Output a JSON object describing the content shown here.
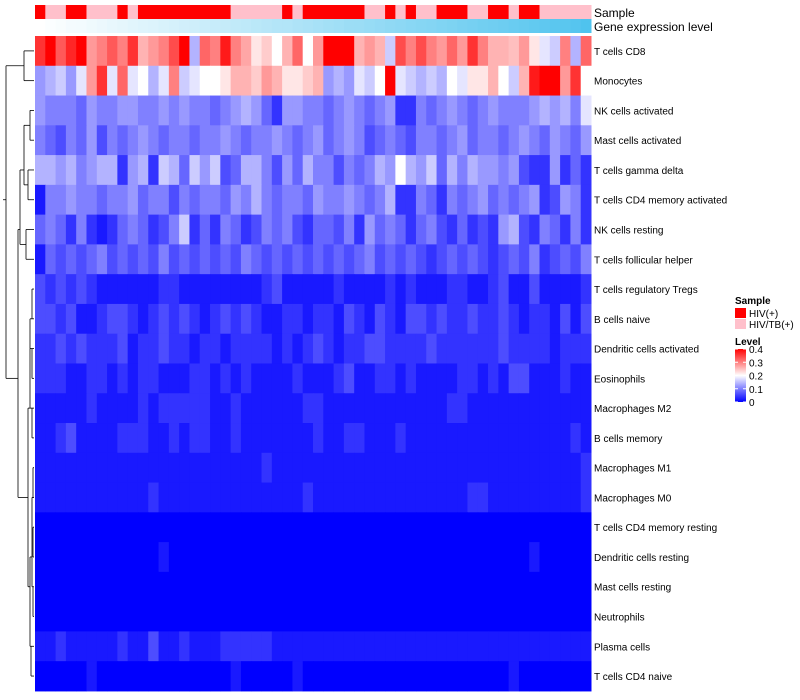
{
  "chart_data": {
    "type": "heatmap",
    "title": "",
    "annotation_tracks": [
      {
        "name": "Sample",
        "label": "Sample"
      },
      {
        "name": "Gene expression level",
        "label": "Gene expression level"
      }
    ],
    "sample_groups": [
      "HIV(+)",
      "HIV/TB(+)",
      "HIV/TB(+)",
      "HIV(+)",
      "HIV(+)",
      "HIV/TB(+)",
      "HIV/TB(+)",
      "HIV/TB(+)",
      "HIV(+)",
      "HIV/TB(+)",
      "HIV(+)",
      "HIV(+)",
      "HIV(+)",
      "HIV(+)",
      "HIV(+)",
      "HIV(+)",
      "HIV(+)",
      "HIV(+)",
      "HIV(+)",
      "HIV/TB(+)",
      "HIV/TB(+)",
      "HIV/TB(+)",
      "HIV/TB(+)",
      "HIV/TB(+)",
      "HIV(+)",
      "HIV/TB(+)",
      "HIV(+)",
      "HIV(+)",
      "HIV(+)",
      "HIV(+)",
      "HIV(+)",
      "HIV(+)",
      "HIV/TB(+)",
      "HIV/TB(+)",
      "HIV(+)",
      "HIV/TB(+)",
      "HIV(+)",
      "HIV/TB(+)",
      "HIV/TB(+)",
      "HIV(+)",
      "HIV(+)",
      "HIV(+)",
      "HIV/TB(+)",
      "HIV/TB(+)",
      "HIV(+)",
      "HIV(+)",
      "HIV/TB(+)",
      "HIV(+)",
      "HIV(+)",
      "HIV/TB(+)",
      "HIV/TB(+)",
      "HIV/TB(+)",
      "HIV/TB(+)",
      "HIV/TB(+)"
    ],
    "gene_expression_level": [
      0.0,
      0.02,
      0.04,
      0.06,
      0.07,
      0.09,
      0.11,
      0.13,
      0.15,
      0.17,
      0.19,
      0.2,
      0.22,
      0.24,
      0.26,
      0.28,
      0.3,
      0.32,
      0.33,
      0.35,
      0.37,
      0.39,
      0.41,
      0.43,
      0.44,
      0.46,
      0.48,
      0.5,
      0.52,
      0.54,
      0.56,
      0.57,
      0.59,
      0.61,
      0.63,
      0.65,
      0.67,
      0.69,
      0.7,
      0.72,
      0.74,
      0.76,
      0.78,
      0.8,
      0.81,
      0.83,
      0.85,
      0.87,
      0.89,
      0.91,
      0.93,
      0.94,
      0.96,
      1.0
    ],
    "rows": [
      "T cells CD8",
      "Monocytes",
      "NK cells activated",
      "Mast cells activated",
      "T cells gamma delta",
      "T cells CD4 memory activated",
      "NK cells resting",
      "T cells follicular helper",
      "T cells regulatory  Tregs",
      "B cells naive",
      "Dendritic cells activated",
      "Eosinophils",
      "Macrophages M2",
      "B cells memory",
      "Macrophages M1",
      "Macrophages M0",
      "T cells CD4 memory resting",
      "Dendritic cells resting",
      "Mast cells resting",
      "Neutrophils",
      "Plasma cells",
      "T cells CD4 naive"
    ],
    "values": [
      [
        0.36,
        0.4,
        0.33,
        0.37,
        0.4,
        0.28,
        0.3,
        0.33,
        0.3,
        0.36,
        0.26,
        0.28,
        0.3,
        0.34,
        0.4,
        0.14,
        0.32,
        0.3,
        0.38,
        0.3,
        0.27,
        0.22,
        0.24,
        0.2,
        0.26,
        0.32,
        0.2,
        0.28,
        0.4,
        0.4,
        0.4,
        0.26,
        0.28,
        0.26,
        0.16,
        0.34,
        0.3,
        0.34,
        0.3,
        0.28,
        0.32,
        0.28,
        0.36,
        0.3,
        0.26,
        0.26,
        0.25,
        0.28,
        0.22,
        0.18,
        0.16,
        0.3,
        0.14,
        0.32
      ],
      [
        0.12,
        0.14,
        0.16,
        0.12,
        0.18,
        0.28,
        0.36,
        0.18,
        0.32,
        0.18,
        0.2,
        0.14,
        0.18,
        0.3,
        0.16,
        0.18,
        0.2,
        0.2,
        0.22,
        0.26,
        0.26,
        0.24,
        0.28,
        0.26,
        0.22,
        0.22,
        0.24,
        0.26,
        0.12,
        0.14,
        0.12,
        0.18,
        0.16,
        0.2,
        0.4,
        0.18,
        0.16,
        0.14,
        0.16,
        0.14,
        0.2,
        0.18,
        0.22,
        0.22,
        0.26,
        0.2,
        0.16,
        0.26,
        0.38,
        0.4,
        0.4,
        0.28,
        0.36,
        0.2
      ],
      [
        0.12,
        0.1,
        0.1,
        0.1,
        0.08,
        0.12,
        0.1,
        0.1,
        0.12,
        0.12,
        0.1,
        0.1,
        0.12,
        0.1,
        0.12,
        0.1,
        0.1,
        0.08,
        0.1,
        0.12,
        0.14,
        0.12,
        0.08,
        0.04,
        0.12,
        0.12,
        0.1,
        0.1,
        0.08,
        0.1,
        0.12,
        0.1,
        0.08,
        0.1,
        0.12,
        0.04,
        0.04,
        0.1,
        0.08,
        0.1,
        0.12,
        0.1,
        0.08,
        0.1,
        0.12,
        0.1,
        0.1,
        0.1,
        0.12,
        0.14,
        0.12,
        0.14,
        0.1,
        0.18
      ],
      [
        0.1,
        0.08,
        0.06,
        0.1,
        0.08,
        0.12,
        0.06,
        0.1,
        0.08,
        0.1,
        0.12,
        0.1,
        0.08,
        0.1,
        0.1,
        0.08,
        0.1,
        0.1,
        0.12,
        0.1,
        0.08,
        0.1,
        0.1,
        0.12,
        0.1,
        0.08,
        0.1,
        0.12,
        0.08,
        0.1,
        0.12,
        0.1,
        0.06,
        0.08,
        0.1,
        0.08,
        0.06,
        0.1,
        0.1,
        0.08,
        0.1,
        0.12,
        0.08,
        0.1,
        0.1,
        0.08,
        0.1,
        0.12,
        0.1,
        0.08,
        0.12,
        0.1,
        0.08,
        0.12
      ],
      [
        0.14,
        0.14,
        0.12,
        0.14,
        0.1,
        0.12,
        0.14,
        0.14,
        0.04,
        0.12,
        0.14,
        0.04,
        0.16,
        0.14,
        0.08,
        0.16,
        0.12,
        0.16,
        0.06,
        0.08,
        0.14,
        0.14,
        0.1,
        0.06,
        0.12,
        0.08,
        0.14,
        0.1,
        0.1,
        0.06,
        0.1,
        0.08,
        0.1,
        0.14,
        0.12,
        0.2,
        0.14,
        0.12,
        0.16,
        0.08,
        0.14,
        0.1,
        0.14,
        0.12,
        0.12,
        0.1,
        0.12,
        0.06,
        0.04,
        0.04,
        0.12,
        0.04,
        0.08,
        0.04
      ],
      [
        0.02,
        0.1,
        0.1,
        0.12,
        0.1,
        0.1,
        0.08,
        0.1,
        0.1,
        0.12,
        0.08,
        0.1,
        0.1,
        0.06,
        0.1,
        0.08,
        0.1,
        0.1,
        0.08,
        0.12,
        0.1,
        0.14,
        0.1,
        0.08,
        0.1,
        0.1,
        0.08,
        0.12,
        0.1,
        0.1,
        0.12,
        0.1,
        0.08,
        0.1,
        0.14,
        0.04,
        0.04,
        0.1,
        0.08,
        0.04,
        0.1,
        0.08,
        0.1,
        0.12,
        0.08,
        0.1,
        0.08,
        0.1,
        0.12,
        0.04,
        0.06,
        0.12,
        0.1,
        0.04
      ],
      [
        0.08,
        0.1,
        0.08,
        0.04,
        0.1,
        0.04,
        0.02,
        0.04,
        0.08,
        0.1,
        0.08,
        0.04,
        0.06,
        0.1,
        0.16,
        0.04,
        0.08,
        0.04,
        0.1,
        0.08,
        0.04,
        0.06,
        0.1,
        0.08,
        0.1,
        0.06,
        0.04,
        0.08,
        0.08,
        0.06,
        0.1,
        0.04,
        0.12,
        0.08,
        0.1,
        0.08,
        0.04,
        0.08,
        0.1,
        0.06,
        0.04,
        0.08,
        0.04,
        0.06,
        0.04,
        0.12,
        0.14,
        0.06,
        0.04,
        0.1,
        0.08,
        0.04,
        0.1,
        0.04
      ],
      [
        0.02,
        0.08,
        0.06,
        0.08,
        0.06,
        0.08,
        0.1,
        0.06,
        0.08,
        0.06,
        0.08,
        0.06,
        0.1,
        0.06,
        0.08,
        0.06,
        0.08,
        0.06,
        0.08,
        0.06,
        0.1,
        0.08,
        0.06,
        0.08,
        0.06,
        0.08,
        0.06,
        0.08,
        0.06,
        0.08,
        0.06,
        0.08,
        0.1,
        0.06,
        0.08,
        0.06,
        0.08,
        0.06,
        0.04,
        0.06,
        0.08,
        0.06,
        0.08,
        0.06,
        0.04,
        0.06,
        0.08,
        0.06,
        0.1,
        0.04,
        0.06,
        0.08,
        0.06,
        0.1
      ],
      [
        0.06,
        0.04,
        0.06,
        0.04,
        0.06,
        0.04,
        0.02,
        0.02,
        0.02,
        0.02,
        0.02,
        0.02,
        0.04,
        0.04,
        0.02,
        0.02,
        0.02,
        0.02,
        0.02,
        0.02,
        0.02,
        0.02,
        0.04,
        0.06,
        0.02,
        0.02,
        0.02,
        0.02,
        0.02,
        0.04,
        0.02,
        0.02,
        0.02,
        0.02,
        0.04,
        0.02,
        0.04,
        0.02,
        0.02,
        0.02,
        0.04,
        0.04,
        0.02,
        0.02,
        0.04,
        0.06,
        0.02,
        0.02,
        0.06,
        0.02,
        0.02,
        0.02,
        0.02,
        0.04
      ],
      [
        0.06,
        0.06,
        0.04,
        0.06,
        0.02,
        0.02,
        0.04,
        0.06,
        0.06,
        0.04,
        0.02,
        0.04,
        0.06,
        0.04,
        0.06,
        0.04,
        0.02,
        0.04,
        0.06,
        0.04,
        0.06,
        0.04,
        0.02,
        0.02,
        0.04,
        0.04,
        0.02,
        0.04,
        0.04,
        0.02,
        0.06,
        0.04,
        0.02,
        0.06,
        0.04,
        0.02,
        0.06,
        0.06,
        0.04,
        0.06,
        0.04,
        0.04,
        0.06,
        0.04,
        0.04,
        0.06,
        0.04,
        0.02,
        0.04,
        0.04,
        0.02,
        0.06,
        0.02,
        0.06
      ],
      [
        0.04,
        0.04,
        0.06,
        0.04,
        0.06,
        0.04,
        0.04,
        0.04,
        0.06,
        0.02,
        0.04,
        0.04,
        0.06,
        0.04,
        0.04,
        0.02,
        0.04,
        0.04,
        0.02,
        0.04,
        0.04,
        0.04,
        0.04,
        0.02,
        0.04,
        0.02,
        0.04,
        0.06,
        0.04,
        0.02,
        0.04,
        0.04,
        0.06,
        0.06,
        0.04,
        0.04,
        0.04,
        0.04,
        0.06,
        0.04,
        0.04,
        0.04,
        0.04,
        0.04,
        0.04,
        0.06,
        0.04,
        0.04,
        0.04,
        0.04,
        0.02,
        0.04,
        0.04,
        0.04
      ],
      [
        0.04,
        0.04,
        0.04,
        0.02,
        0.02,
        0.04,
        0.04,
        0.02,
        0.04,
        0.02,
        0.04,
        0.04,
        0.02,
        0.02,
        0.02,
        0.04,
        0.04,
        0.02,
        0.04,
        0.02,
        0.04,
        0.02,
        0.02,
        0.02,
        0.02,
        0.04,
        0.02,
        0.02,
        0.02,
        0.04,
        0.06,
        0.02,
        0.02,
        0.04,
        0.04,
        0.02,
        0.04,
        0.02,
        0.02,
        0.02,
        0.02,
        0.04,
        0.04,
        0.02,
        0.04,
        0.02,
        0.06,
        0.06,
        0.02,
        0.02,
        0.02,
        0.04,
        0.02,
        0.02
      ],
      [
        0.02,
        0.02,
        0.02,
        0.02,
        0.02,
        0.04,
        0.02,
        0.02,
        0.02,
        0.02,
        0.04,
        0.02,
        0.04,
        0.04,
        0.04,
        0.04,
        0.04,
        0.02,
        0.02,
        0.04,
        0.02,
        0.02,
        0.02,
        0.02,
        0.02,
        0.02,
        0.04,
        0.04,
        0.02,
        0.02,
        0.02,
        0.02,
        0.02,
        0.02,
        0.02,
        0.02,
        0.02,
        0.02,
        0.02,
        0.02,
        0.04,
        0.04,
        0.02,
        0.02,
        0.02,
        0.02,
        0.02,
        0.02,
        0.02,
        0.02,
        0.02,
        0.02,
        0.02,
        0.02
      ],
      [
        0.02,
        0.02,
        0.04,
        0.06,
        0.02,
        0.02,
        0.02,
        0.02,
        0.04,
        0.04,
        0.04,
        0.02,
        0.02,
        0.04,
        0.02,
        0.04,
        0.04,
        0.02,
        0.02,
        0.04,
        0.02,
        0.02,
        0.02,
        0.02,
        0.02,
        0.02,
        0.02,
        0.04,
        0.02,
        0.02,
        0.04,
        0.04,
        0.02,
        0.02,
        0.02,
        0.04,
        0.02,
        0.02,
        0.02,
        0.02,
        0.02,
        0.02,
        0.02,
        0.02,
        0.02,
        0.02,
        0.02,
        0.02,
        0.02,
        0.02,
        0.02,
        0.02,
        0.04,
        0.02
      ],
      [
        0.02,
        0.02,
        0.02,
        0.02,
        0.02,
        0.02,
        0.02,
        0.02,
        0.02,
        0.02,
        0.02,
        0.02,
        0.02,
        0.02,
        0.02,
        0.02,
        0.02,
        0.02,
        0.02,
        0.02,
        0.02,
        0.02,
        0.04,
        0.02,
        0.02,
        0.02,
        0.02,
        0.02,
        0.02,
        0.02,
        0.02,
        0.02,
        0.02,
        0.02,
        0.02,
        0.02,
        0.02,
        0.02,
        0.02,
        0.02,
        0.02,
        0.02,
        0.02,
        0.02,
        0.02,
        0.02,
        0.02,
        0.02,
        0.02,
        0.02,
        0.02,
        0.02,
        0.02,
        0.04
      ],
      [
        0.02,
        0.02,
        0.02,
        0.02,
        0.02,
        0.02,
        0.02,
        0.02,
        0.02,
        0.02,
        0.02,
        0.04,
        0.02,
        0.02,
        0.02,
        0.02,
        0.02,
        0.02,
        0.02,
        0.02,
        0.02,
        0.02,
        0.02,
        0.02,
        0.02,
        0.02,
        0.04,
        0.02,
        0.02,
        0.02,
        0.02,
        0.02,
        0.02,
        0.02,
        0.02,
        0.02,
        0.02,
        0.02,
        0.02,
        0.02,
        0.02,
        0.02,
        0.04,
        0.04,
        0.02,
        0.02,
        0.02,
        0.02,
        0.02,
        0.02,
        0.02,
        0.02,
        0.02,
        0.04
      ],
      [
        0.0,
        0.0,
        0.0,
        0.0,
        0.0,
        0.0,
        0.0,
        0.0,
        0.0,
        0.0,
        0.0,
        0.0,
        0.0,
        0.0,
        0.0,
        0.0,
        0.0,
        0.0,
        0.0,
        0.0,
        0.0,
        0.0,
        0.0,
        0.0,
        0.0,
        0.0,
        0.0,
        0.0,
        0.0,
        0.0,
        0.0,
        0.0,
        0.0,
        0.0,
        0.0,
        0.0,
        0.0,
        0.0,
        0.0,
        0.0,
        0.0,
        0.0,
        0.0,
        0.0,
        0.0,
        0.0,
        0.0,
        0.0,
        0.0,
        0.0,
        0.0,
        0.0,
        0.0,
        0.0
      ],
      [
        0.0,
        0.0,
        0.0,
        0.0,
        0.0,
        0.0,
        0.0,
        0.0,
        0.0,
        0.0,
        0.0,
        0.0,
        0.02,
        0.0,
        0.0,
        0.0,
        0.0,
        0.0,
        0.0,
        0.0,
        0.0,
        0.0,
        0.0,
        0.0,
        0.0,
        0.0,
        0.0,
        0.0,
        0.0,
        0.0,
        0.0,
        0.0,
        0.0,
        0.0,
        0.0,
        0.0,
        0.0,
        0.0,
        0.0,
        0.0,
        0.0,
        0.0,
        0.0,
        0.0,
        0.0,
        0.0,
        0.0,
        0.0,
        0.02,
        0.0,
        0.0,
        0.0,
        0.0,
        0.0
      ],
      [
        0.0,
        0.0,
        0.0,
        0.0,
        0.0,
        0.0,
        0.0,
        0.0,
        0.0,
        0.0,
        0.0,
        0.0,
        0.0,
        0.0,
        0.0,
        0.0,
        0.0,
        0.0,
        0.0,
        0.0,
        0.0,
        0.0,
        0.0,
        0.0,
        0.0,
        0.0,
        0.0,
        0.0,
        0.0,
        0.0,
        0.0,
        0.0,
        0.0,
        0.0,
        0.0,
        0.0,
        0.0,
        0.0,
        0.0,
        0.0,
        0.0,
        0.0,
        0.0,
        0.0,
        0.0,
        0.0,
        0.0,
        0.0,
        0.0,
        0.0,
        0.0,
        0.0,
        0.0,
        0.0
      ],
      [
        0.0,
        0.0,
        0.0,
        0.0,
        0.0,
        0.0,
        0.0,
        0.0,
        0.0,
        0.0,
        0.0,
        0.0,
        0.0,
        0.0,
        0.0,
        0.0,
        0.0,
        0.0,
        0.0,
        0.0,
        0.0,
        0.0,
        0.0,
        0.0,
        0.0,
        0.0,
        0.0,
        0.0,
        0.0,
        0.0,
        0.0,
        0.0,
        0.0,
        0.0,
        0.0,
        0.0,
        0.0,
        0.0,
        0.0,
        0.0,
        0.0,
        0.0,
        0.0,
        0.0,
        0.0,
        0.0,
        0.0,
        0.0,
        0.0,
        0.0,
        0.0,
        0.0,
        0.0,
        0.0
      ],
      [
        0.02,
        0.02,
        0.04,
        0.02,
        0.02,
        0.02,
        0.02,
        0.02,
        0.04,
        0.02,
        0.02,
        0.06,
        0.02,
        0.02,
        0.04,
        0.02,
        0.02,
        0.02,
        0.04,
        0.04,
        0.04,
        0.04,
        0.04,
        0.02,
        0.02,
        0.02,
        0.02,
        0.02,
        0.02,
        0.02,
        0.02,
        0.02,
        0.02,
        0.02,
        0.02,
        0.02,
        0.02,
        0.02,
        0.02,
        0.02,
        0.02,
        0.02,
        0.02,
        0.02,
        0.02,
        0.02,
        0.02,
        0.02,
        0.02,
        0.02,
        0.02,
        0.02,
        0.02,
        0.02
      ],
      [
        0.0,
        0.0,
        0.0,
        0.0,
        0.0,
        0.02,
        0.0,
        0.0,
        0.0,
        0.0,
        0.0,
        0.0,
        0.0,
        0.0,
        0.0,
        0.0,
        0.0,
        0.0,
        0.0,
        0.02,
        0.0,
        0.0,
        0.0,
        0.0,
        0.0,
        0.02,
        0.0,
        0.0,
        0.0,
        0.0,
        0.0,
        0.0,
        0.0,
        0.0,
        0.0,
        0.0,
        0.0,
        0.0,
        0.0,
        0.0,
        0.0,
        0.0,
        0.0,
        0.0,
        0.0,
        0.0,
        0.02,
        0.0,
        0.0,
        0.0,
        0.0,
        0.0,
        0.0,
        0.0
      ]
    ],
    "legend": {
      "sample_title": "Sample",
      "sample_entries": [
        {
          "label": "HIV(+)",
          "color": "#ff0000"
        },
        {
          "label": "HIV/TB(+)",
          "color": "#ffc0cb"
        }
      ],
      "level_title": "Level",
      "level_ticks": [
        "0.4",
        "0.3",
        "0.2",
        "0.1",
        "0"
      ],
      "level_tick_values": [
        0.4,
        0.3,
        0.2,
        0.1,
        0
      ],
      "level_range": [
        0,
        0.4
      ]
    },
    "colors": {
      "low": "#0000ff",
      "mid": "#ffffff",
      "high": "#ff0000",
      "mid_value": 0.2,
      "expr_low": "#ffffff",
      "expr_high": "#4fc3ee"
    }
  }
}
